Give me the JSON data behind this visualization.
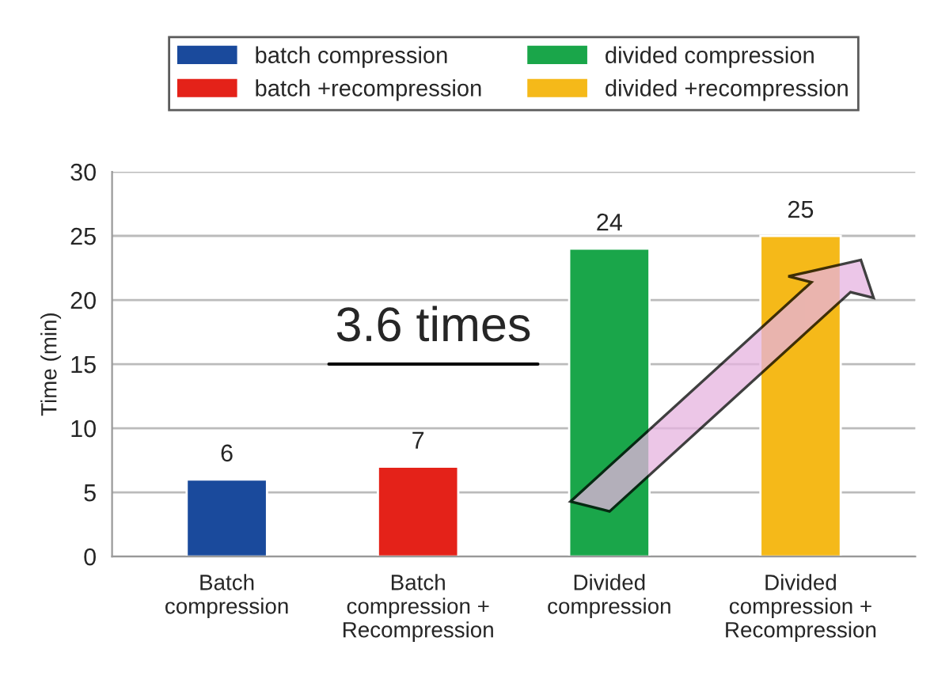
{
  "chart_data": {
    "type": "bar",
    "stacked": true,
    "categories": [
      "Batch\ncompression",
      "Batch\ncompression +\nRecompression",
      "Divided\ncompression",
      "Divided\ncompression +\nRecompression"
    ],
    "series": [
      {
        "name": "batch compression",
        "color": "#1a4a9c",
        "values": [
          6,
          null,
          null,
          null
        ]
      },
      {
        "name": "batch +recompression",
        "color": "#e42219",
        "values": [
          null,
          7,
          null,
          null
        ]
      },
      {
        "name": "divided compression",
        "color": "#1aa64a",
        "values": [
          null,
          null,
          24,
          null
        ]
      },
      {
        "name": "divided +recompression",
        "color": "#f5b919",
        "values": [
          null,
          null,
          null,
          25
        ]
      }
    ],
    "ylabel": "Time (min)",
    "ylim": [
      0,
      30
    ],
    "yticks": [
      0,
      5,
      10,
      15,
      20,
      25,
      30
    ],
    "grid": "y",
    "legend": "top",
    "data_labels": true,
    "annotations": [
      "3.6 times"
    ]
  }
}
